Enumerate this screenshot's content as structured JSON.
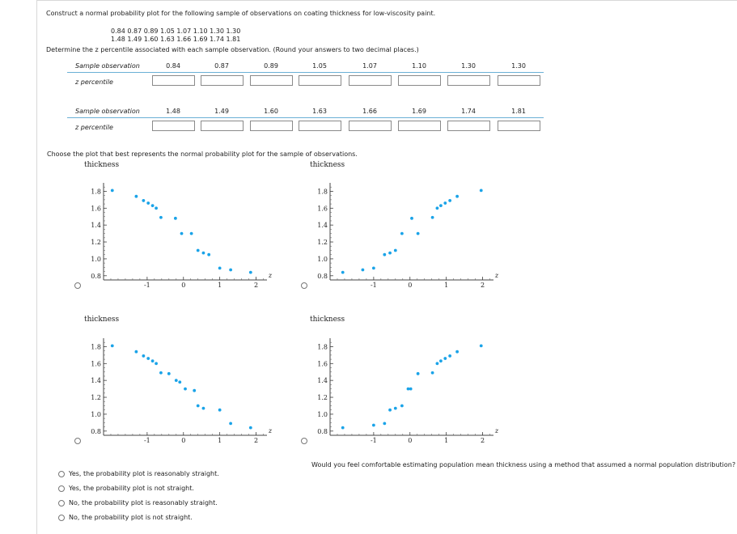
{
  "question1": "Construct a normal probability plot for the following sample of observations on coating thickness for low-viscosity paint.",
  "data_line1": "0.84   0.87   0.89   1.05   1.07   1.10   1.30   1.30",
  "data_line2": "1.48   1.49   1.60   1.63   1.66   1.69   1.74   1.81",
  "question2": "Determine the z percentile associated with each sample observation. (Round your answers to two decimal places.)",
  "table1": {
    "row_label": "Sample observation",
    "z_label": "z percentile",
    "values": [
      "0.84",
      "0.87",
      "0.89",
      "1.05",
      "1.07",
      "1.10",
      "1.30",
      "1.30"
    ]
  },
  "table2": {
    "row_label": "Sample observation",
    "z_label": "z percentile",
    "values": [
      "1.48",
      "1.49",
      "1.60",
      "1.63",
      "1.66",
      "1.69",
      "1.74",
      "1.81"
    ]
  },
  "question3": "Choose the plot that best represents the normal probability plot for the sample of observations.",
  "question4": "Would you feel comfortable estimating population mean thickness using a method that assumed a normal population distribution?",
  "options": [
    "Yes, the probability plot is reasonably straight.",
    "Yes, the probability plot is not straight.",
    "No, the probability plot is reasonably straight.",
    "No, the probability plot is not straight."
  ],
  "colors": {
    "point": "#1aa3e8",
    "rule": "#6ab0d6"
  },
  "chart_data": [
    {
      "type": "scatter",
      "title": "thickness",
      "xlabel": "z",
      "xticks": [
        "-1",
        "0",
        "1",
        "2"
      ],
      "yticks": [
        "1.8",
        "1.6",
        "1.4",
        "1.2",
        "1.0",
        "0.8"
      ],
      "xlim": [
        -2.2,
        2.3
      ],
      "ylim": [
        0.75,
        1.9
      ],
      "x": [
        -1.96,
        -1.3,
        -1.1,
        -0.97,
        -0.85,
        -0.75,
        -0.62,
        -0.22,
        -0.05,
        0.22,
        0.4,
        0.55,
        0.7,
        1.0,
        1.3,
        1.85
      ],
      "y": [
        1.81,
        1.74,
        1.69,
        1.66,
        1.63,
        1.6,
        1.49,
        1.48,
        1.3,
        1.3,
        1.1,
        1.07,
        1.05,
        0.89,
        0.87,
        0.84
      ]
    },
    {
      "type": "scatter",
      "title": "thickness",
      "xlabel": "z",
      "xticks": [
        "-1",
        "0",
        "1",
        "2"
      ],
      "yticks": [
        "1.8",
        "1.6",
        "1.4",
        "1.2",
        "1.0",
        "0.8"
      ],
      "xlim": [
        -2.2,
        2.3
      ],
      "ylim": [
        0.75,
        1.9
      ],
      "x": [
        -1.85,
        -1.3,
        -1.0,
        -0.7,
        -0.55,
        -0.4,
        -0.22,
        0.22,
        0.05,
        0.62,
        0.75,
        0.85,
        0.97,
        1.1,
        1.3,
        1.96
      ],
      "y": [
        0.84,
        0.87,
        0.89,
        1.05,
        1.07,
        1.1,
        1.3,
        1.3,
        1.48,
        1.49,
        1.6,
        1.63,
        1.66,
        1.69,
        1.74,
        1.81
      ]
    },
    {
      "type": "scatter",
      "title": "thickness",
      "xlabel": "z",
      "xticks": [
        "-1",
        "0",
        "1",
        "2"
      ],
      "yticks": [
        "1.8",
        "1.6",
        "1.4",
        "1.2",
        "1.0",
        "0.8"
      ],
      "xlim": [
        -2.2,
        2.3
      ],
      "ylim": [
        0.75,
        1.9
      ],
      "x": [
        -1.96,
        -1.3,
        -1.1,
        -0.97,
        -0.85,
        -0.75,
        -0.62,
        -0.4,
        -0.2,
        -0.1,
        0.05,
        0.3,
        0.4,
        0.55,
        1.0,
        1.3,
        1.85
      ],
      "y": [
        1.81,
        1.74,
        1.69,
        1.66,
        1.63,
        1.6,
        1.49,
        1.48,
        1.4,
        1.38,
        1.3,
        1.28,
        1.1,
        1.07,
        1.05,
        0.89,
        0.84
      ]
    },
    {
      "type": "scatter",
      "title": "thickness",
      "xlabel": "z",
      "xticks": [
        "-1",
        "0",
        "1",
        "2"
      ],
      "yticks": [
        "1.8",
        "1.6",
        "1.4",
        "1.2",
        "1.0",
        "0.8"
      ],
      "xlim": [
        -2.2,
        2.3
      ],
      "ylim": [
        0.75,
        1.9
      ],
      "x": [
        -1.85,
        -1.0,
        -0.7,
        -0.55,
        -0.4,
        -0.22,
        -0.05,
        0.02,
        0.22,
        0.62,
        0.75,
        0.85,
        0.97,
        1.1,
        1.3,
        1.96
      ],
      "y": [
        0.84,
        0.87,
        0.89,
        1.05,
        1.07,
        1.1,
        1.3,
        1.3,
        1.48,
        1.49,
        1.6,
        1.63,
        1.66,
        1.69,
        1.74,
        1.81
      ]
    }
  ]
}
